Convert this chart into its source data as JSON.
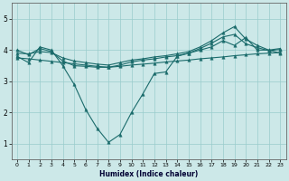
{
  "title": "",
  "xlabel": "Humidex (Indice chaleur)",
  "xlim": [
    -0.5,
    23.5
  ],
  "ylim": [
    0.5,
    5.5
  ],
  "yticks": [
    1,
    2,
    3,
    4,
    5
  ],
  "xticks": [
    0,
    1,
    2,
    3,
    4,
    5,
    6,
    7,
    8,
    9,
    10,
    11,
    12,
    13,
    14,
    15,
    16,
    17,
    18,
    19,
    20,
    21,
    22,
    23
  ],
  "bg_color": "#cce8e8",
  "line_color": "#1a6b6b",
  "grid_color": "#99cccc",
  "s1": [
    3.8,
    3.6,
    4.1,
    4.0,
    3.5,
    2.9,
    2.1,
    1.5,
    1.05,
    1.3,
    2.0,
    2.6,
    3.25,
    3.3,
    3.8,
    3.9,
    4.0,
    4.1,
    4.3,
    4.15,
    4.4,
    4.0,
    4.0,
    3.9
  ],
  "s2": [
    3.75,
    3.72,
    3.68,
    3.64,
    3.6,
    3.56,
    3.52,
    3.48,
    3.45,
    3.48,
    3.52,
    3.55,
    3.58,
    3.62,
    3.65,
    3.68,
    3.72,
    3.75,
    3.78,
    3.82,
    3.85,
    3.88,
    3.9,
    3.92
  ],
  "s3": [
    3.9,
    3.88,
    3.95,
    3.92,
    3.75,
    3.65,
    3.6,
    3.55,
    3.52,
    3.6,
    3.68,
    3.72,
    3.78,
    3.82,
    3.88,
    3.95,
    4.1,
    4.3,
    4.55,
    4.75,
    4.35,
    4.15,
    4.0,
    4.05
  ],
  "s4": [
    4.0,
    3.85,
    4.05,
    3.95,
    3.65,
    3.5,
    3.48,
    3.45,
    3.45,
    3.52,
    3.62,
    3.68,
    3.72,
    3.78,
    3.82,
    3.9,
    4.05,
    4.22,
    4.42,
    4.5,
    4.2,
    4.08,
    3.98,
    4.02
  ],
  "marker": "^",
  "markersize": 2.5,
  "linewidth": 0.8
}
